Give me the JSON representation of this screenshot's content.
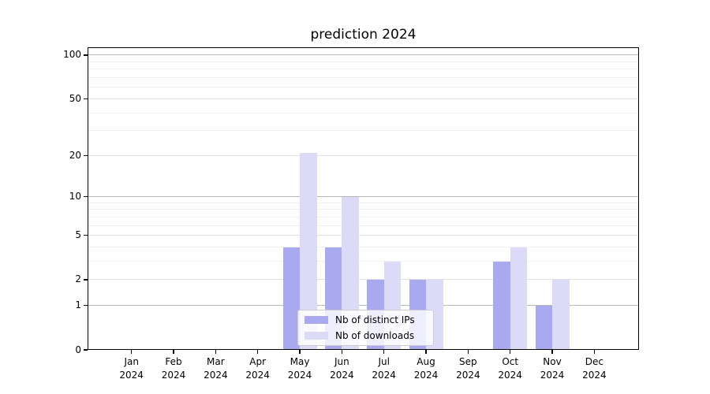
{
  "chart_data": {
    "type": "bar",
    "title": "prediction 2024",
    "x_categories": [
      "Jan",
      "Feb",
      "Mar",
      "Apr",
      "May",
      "Jun",
      "Jul",
      "Aug",
      "Sep",
      "Oct",
      "Nov",
      "Dec"
    ],
    "x_year": "2024",
    "series": [
      {
        "name": "Nb of distinct IPs",
        "color": "#a9a9f0",
        "values": [
          0,
          0,
          0,
          0,
          4,
          4,
          2,
          2,
          0,
          3,
          1,
          0
        ]
      },
      {
        "name": "Nb of downloads",
        "color": "#dbdbf8",
        "values": [
          0,
          0,
          0,
          0,
          21,
          10,
          3,
          2,
          0,
          4,
          2,
          0
        ]
      }
    ],
    "y_scale": "log10(value+1)",
    "y_ticks": [
      0,
      1,
      2,
      5,
      10,
      20,
      50,
      100
    ],
    "y_decade_gridlines": [
      1,
      10,
      100
    ],
    "y_minor_gridlines": [
      3,
      4,
      6,
      7,
      8,
      9,
      30,
      40,
      60,
      70,
      80,
      90
    ],
    "y_axis_top_value": 113,
    "grid": true,
    "legend_position": "lower-center overlay",
    "colors": {
      "distinct_ips_bar": "#a9a9f0",
      "downloads_bar": "#dbdbf8",
      "decade_gridline": "#b9b9b9",
      "labeled_gridline": "#e2e2e2",
      "minor_gridline": "#f1f1f1",
      "frame": "#000000",
      "background": "#ffffff"
    }
  }
}
